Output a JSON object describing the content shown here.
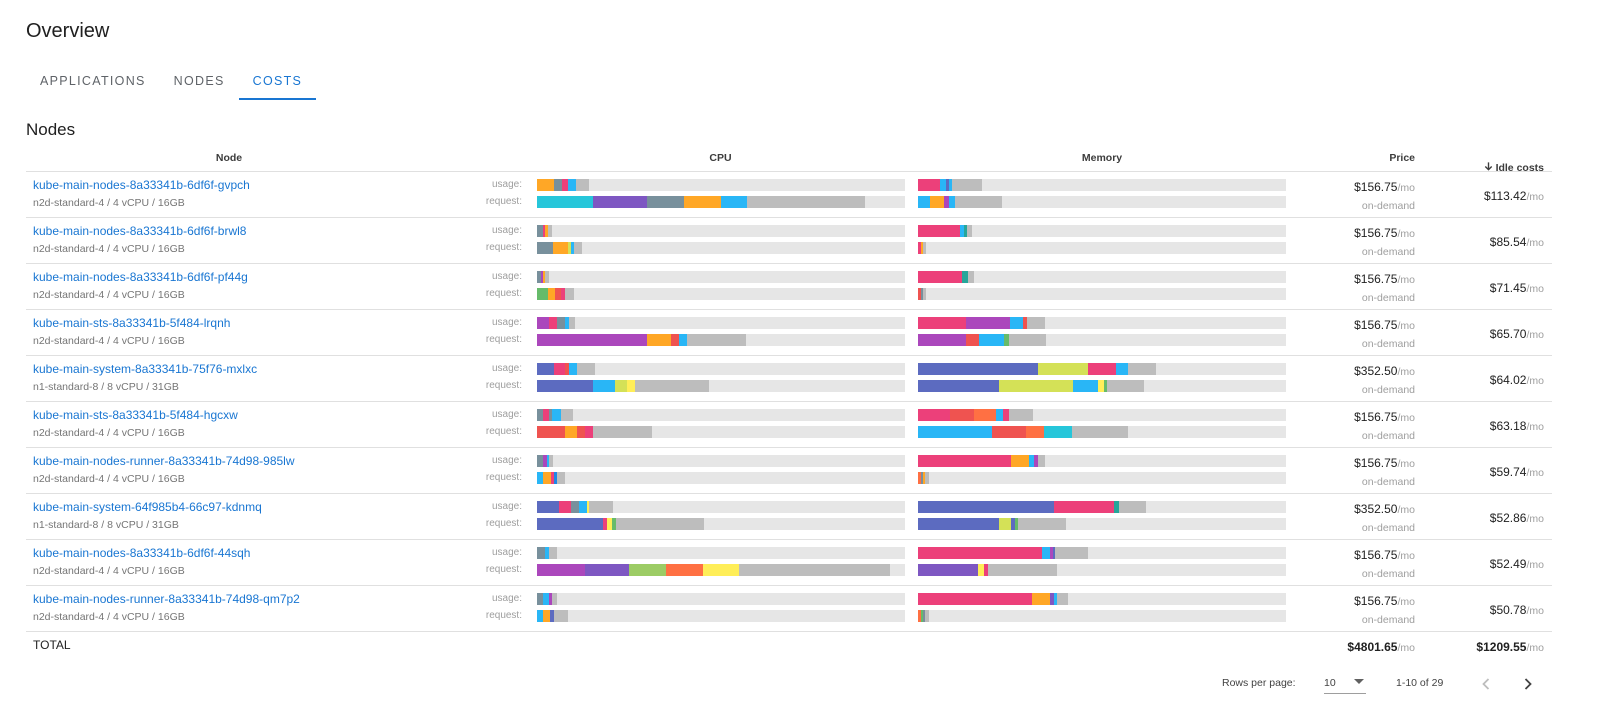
{
  "page": {
    "title": "Overview"
  },
  "tabs": [
    {
      "label": "APPLICATIONS",
      "active": false
    },
    {
      "label": "NODES",
      "active": false
    },
    {
      "label": "COSTS",
      "active": true
    }
  ],
  "section": {
    "title": "Nodes"
  },
  "table": {
    "headers": {
      "node": "Node",
      "cpu": "CPU",
      "memory": "Memory",
      "price": "Price",
      "idle": "Idle costs"
    },
    "sort_icon": "arrow-down-icon",
    "usage_label": "usage:",
    "request_label": "request:",
    "per_month": "/mo",
    "rows": [
      {
        "name": "kube-main-nodes-8a33341b-6df6f-gvpch",
        "spec": "n2d-standard-4 / 4 vCPU / 16GB",
        "price": "$156.75",
        "pricing": "on-demand",
        "idle": "$113.42",
        "cpu_usage": [
          [
            "#ffa726",
            0.046
          ],
          [
            "#78909c",
            0.022
          ],
          [
            "#ec407a",
            0.015
          ],
          [
            "#29b6f6",
            0.022
          ],
          [
            "#bdbdbd",
            0.035
          ]
        ],
        "cpu_request": [
          [
            "#26c6da",
            0.152
          ],
          [
            "#7e57c2",
            0.147
          ],
          [
            "#78909c",
            0.1
          ],
          [
            "#ffa726",
            0.1
          ],
          [
            "#29b6f6",
            0.073
          ],
          [
            "#bdbdbd",
            0.32
          ]
        ],
        "mem_usage": [
          [
            "#ec407a",
            0.06
          ],
          [
            "#29b6f6",
            0.015
          ],
          [
            "#5c6bc0",
            0.008
          ],
          [
            "#29b6f6",
            0.01
          ],
          [
            "#bdbdbd",
            0.08
          ]
        ],
        "mem_request": [
          [
            "#29b6f6",
            0.033
          ],
          [
            "#ffa726",
            0.038
          ],
          [
            "#ab47bc",
            0.014
          ],
          [
            "#29b6f6",
            0.016
          ],
          [
            "#bdbdbd",
            0.127
          ]
        ]
      },
      {
        "name": "kube-main-nodes-8a33341b-6df6f-brwl8",
        "spec": "n2d-standard-4 / 4 vCPU / 16GB",
        "price": "$156.75",
        "pricing": "on-demand",
        "idle": "$85.54",
        "cpu_usage": [
          [
            "#78909c",
            0.016
          ],
          [
            "#ec407a",
            0.007
          ],
          [
            "#ffa726",
            0.006
          ],
          [
            "#bdbdbd",
            0.013
          ]
        ],
        "cpu_request": [
          [
            "#78909c",
            0.043
          ],
          [
            "#ffa726",
            0.04
          ],
          [
            "#d4e157",
            0.01
          ],
          [
            "#29b6f6",
            0.008
          ],
          [
            "#bdbdbd",
            0.02
          ]
        ],
        "mem_usage": [
          [
            "#ec407a",
            0.114
          ],
          [
            "#29b6f6",
            0.011
          ],
          [
            "#26a69a",
            0.007
          ],
          [
            "#bdbdbd",
            0.015
          ]
        ],
        "mem_request": [
          [
            "#ec407a",
            0.008
          ],
          [
            "#ffa726",
            0.005
          ],
          [
            "#bdbdbd",
            0.01
          ]
        ]
      },
      {
        "name": "kube-main-nodes-8a33341b-6df6f-pf44g",
        "spec": "n2d-standard-4 / 4 vCPU / 16GB",
        "price": "$156.75",
        "pricing": "on-demand",
        "idle": "$71.45",
        "cpu_usage": [
          [
            "#78909c",
            0.01
          ],
          [
            "#ab47bc",
            0.006
          ],
          [
            "#ffa726",
            0.006
          ],
          [
            "#bdbdbd",
            0.01
          ]
        ],
        "cpu_request": [
          [
            "#66bb6a",
            0.03
          ],
          [
            "#ffa726",
            0.02
          ],
          [
            "#ef5350",
            0.015
          ],
          [
            "#ec407a",
            0.01
          ],
          [
            "#bdbdbd",
            0.025
          ]
        ],
        "mem_usage": [
          [
            "#ec407a",
            0.12
          ],
          [
            "#26a69a",
            0.015
          ],
          [
            "#bdbdbd",
            0.018
          ]
        ],
        "mem_request": [
          [
            "#ef5350",
            0.008
          ],
          [
            "#78909c",
            0.005
          ],
          [
            "#bdbdbd",
            0.01
          ]
        ]
      },
      {
        "name": "kube-main-sts-8a33341b-5f484-lrqnh",
        "spec": "n2d-standard-4 / 4 vCPU / 16GB",
        "price": "$156.75",
        "pricing": "on-demand",
        "idle": "$65.70",
        "cpu_usage": [
          [
            "#ab47bc",
            0.033
          ],
          [
            "#ec407a",
            0.022
          ],
          [
            "#78909c",
            0.022
          ],
          [
            "#29b6f6",
            0.01
          ],
          [
            "#bdbdbd",
            0.015
          ]
        ],
        "cpu_request": [
          [
            "#ab47bc",
            0.3
          ],
          [
            "#ffa726",
            0.065
          ],
          [
            "#ef5350",
            0.022
          ],
          [
            "#29b6f6",
            0.022
          ],
          [
            "#bdbdbd",
            0.16
          ]
        ],
        "mem_usage": [
          [
            "#ec407a",
            0.13
          ],
          [
            "#ab47bc",
            0.12
          ],
          [
            "#29b6f6",
            0.035
          ],
          [
            "#ef5350",
            0.01
          ],
          [
            "#bdbdbd",
            0.05
          ]
        ],
        "mem_request": [
          [
            "#ab47bc",
            0.13
          ],
          [
            "#ef5350",
            0.035
          ],
          [
            "#29b6f6",
            0.07
          ],
          [
            "#66bb6a",
            0.012
          ],
          [
            "#bdbdbd",
            0.1
          ]
        ]
      },
      {
        "name": "kube-main-system-8a33341b-75f76-mxlxc",
        "spec": "n1-standard-8 / 8 vCPU / 31GB",
        "price": "$352.50",
        "pricing": "on-demand",
        "idle": "$64.02",
        "cpu_usage": [
          [
            "#5c6bc0",
            0.046
          ],
          [
            "#ec407a",
            0.03
          ],
          [
            "#ef5350",
            0.01
          ],
          [
            "#29b6f6",
            0.022
          ],
          [
            "#bdbdbd",
            0.05
          ]
        ],
        "cpu_request": [
          [
            "#5c6bc0",
            0.152
          ],
          [
            "#29b6f6",
            0.06
          ],
          [
            "#d4e157",
            0.033
          ],
          [
            "#ffee58",
            0.022
          ],
          [
            "#bdbdbd",
            0.2
          ]
        ],
        "mem_usage": [
          [
            "#5c6bc0",
            0.326
          ],
          [
            "#d4e157",
            0.136
          ],
          [
            "#ec407a",
            0.076
          ],
          [
            "#29b6f6",
            0.033
          ],
          [
            "#bdbdbd",
            0.076
          ]
        ],
        "mem_request": [
          [
            "#5c6bc0",
            0.22
          ],
          [
            "#d4e157",
            0.2
          ],
          [
            "#29b6f6",
            0.07
          ],
          [
            "#ffee58",
            0.015
          ],
          [
            "#66bb6a",
            0.008
          ],
          [
            "#bdbdbd",
            0.1
          ]
        ]
      },
      {
        "name": "kube-main-sts-8a33341b-5f484-hgcxw",
        "spec": "n2d-standard-4 / 4 vCPU / 16GB",
        "price": "$156.75",
        "pricing": "on-demand",
        "idle": "$63.18",
        "cpu_usage": [
          [
            "#78909c",
            0.016
          ],
          [
            "#ec407a",
            0.016
          ],
          [
            "#78909c",
            0.01
          ],
          [
            "#29b6f6",
            0.022
          ],
          [
            "#bdbdbd",
            0.033
          ]
        ],
        "cpu_request": [
          [
            "#ef5350",
            0.076
          ],
          [
            "#ffa726",
            0.033
          ],
          [
            "#ef5350",
            0.022
          ],
          [
            "#ec407a",
            0.022
          ],
          [
            "#bdbdbd",
            0.16
          ]
        ],
        "mem_usage": [
          [
            "#ec407a",
            0.087
          ],
          [
            "#ef5350",
            0.065
          ],
          [
            "#ff7043",
            0.06
          ],
          [
            "#29b6f6",
            0.02
          ],
          [
            "#ec407a",
            0.015
          ],
          [
            "#bdbdbd",
            0.065
          ]
        ],
        "mem_request": [
          [
            "#29b6f6",
            0.2
          ],
          [
            "#ef5350",
            0.093
          ],
          [
            "#ff7043",
            0.05
          ],
          [
            "#26c6da",
            0.076
          ],
          [
            "#bdbdbd",
            0.152
          ]
        ]
      },
      {
        "name": "kube-main-nodes-runner-8a33341b-74d98-985lw",
        "spec": "n2d-standard-4 / 4 vCPU / 16GB",
        "price": "$156.75",
        "pricing": "on-demand",
        "idle": "$59.74",
        "cpu_usage": [
          [
            "#78909c",
            0.016
          ],
          [
            "#ab47bc",
            0.01
          ],
          [
            "#29b6f6",
            0.008
          ],
          [
            "#bdbdbd",
            0.01
          ]
        ],
        "cpu_request": [
          [
            "#29b6f6",
            0.016
          ],
          [
            "#ffa726",
            0.022
          ],
          [
            "#ec407a",
            0.008
          ],
          [
            "#1e88e5",
            0.008
          ],
          [
            "#bdbdbd",
            0.022
          ]
        ],
        "mem_usage": [
          [
            "#ec407a",
            0.253
          ],
          [
            "#ffa726",
            0.05
          ],
          [
            "#29b6f6",
            0.012
          ],
          [
            "#ab47bc",
            0.01
          ],
          [
            "#bdbdbd",
            0.02
          ]
        ],
        "mem_request": [
          [
            "#ff7043",
            0.008
          ],
          [
            "#78909c",
            0.006
          ],
          [
            "#ffa726",
            0.006
          ],
          [
            "#bdbdbd",
            0.01
          ]
        ]
      },
      {
        "name": "kube-main-system-64f985b4-66c97-kdnmq",
        "spec": "n1-standard-8 / 8 vCPU / 31GB",
        "price": "$352.50",
        "pricing": "on-demand",
        "idle": "$52.86",
        "cpu_usage": [
          [
            "#5c6bc0",
            0.06
          ],
          [
            "#ec407a",
            0.033
          ],
          [
            "#78909c",
            0.022
          ],
          [
            "#29b6f6",
            0.022
          ],
          [
            "#ffee58",
            0.005
          ],
          [
            "#bdbdbd",
            0.065
          ]
        ],
        "cpu_request": [
          [
            "#5c6bc0",
            0.179
          ],
          [
            "#ec407a",
            0.01
          ],
          [
            "#ffee58",
            0.016
          ],
          [
            "#66bb6a",
            0.01
          ],
          [
            "#bdbdbd",
            0.24
          ]
        ],
        "mem_usage": [
          [
            "#5c6bc0",
            0.37
          ],
          [
            "#ec407a",
            0.163
          ],
          [
            "#26a69a",
            0.012
          ],
          [
            "#bdbdbd",
            0.076
          ]
        ],
        "mem_request": [
          [
            "#5c6bc0",
            0.22
          ],
          [
            "#d4e157",
            0.033
          ],
          [
            "#5c6bc0",
            0.01
          ],
          [
            "#66bb6a",
            0.008
          ],
          [
            "#bdbdbd",
            0.13
          ]
        ]
      },
      {
        "name": "kube-main-nodes-8a33341b-6df6f-44sqh",
        "spec": "n2d-standard-4 / 4 vCPU / 16GB",
        "price": "$156.75",
        "pricing": "on-demand",
        "idle": "$52.49",
        "cpu_usage": [
          [
            "#78909c",
            0.022
          ],
          [
            "#29b6f6",
            0.01
          ],
          [
            "#bdbdbd",
            0.022
          ]
        ],
        "cpu_request": [
          [
            "#ab47bc",
            0.13
          ],
          [
            "#7e57c2",
            0.12
          ],
          [
            "#9ccc65",
            0.1
          ],
          [
            "#ff7043",
            0.1
          ],
          [
            "#ffee58",
            0.1
          ],
          [
            "#bdbdbd",
            0.41
          ]
        ],
        "mem_usage": [
          [
            "#ec407a",
            0.337
          ],
          [
            "#29b6f6",
            0.022
          ],
          [
            "#ab47bc",
            0.008
          ],
          [
            "#5c6bc0",
            0.006
          ],
          [
            "#bdbdbd",
            0.09
          ]
        ],
        "mem_request": [
          [
            "#7e57c2",
            0.163
          ],
          [
            "#ffee58",
            0.016
          ],
          [
            "#ec407a",
            0.01
          ],
          [
            "#bdbdbd",
            0.19
          ]
        ]
      },
      {
        "name": "kube-main-nodes-runner-8a33341b-74d98-qm7p2",
        "spec": "n2d-standard-4 / 4 vCPU / 16GB",
        "price": "$156.75",
        "pricing": "on-demand",
        "idle": "$50.78",
        "cpu_usage": [
          [
            "#78909c",
            0.016
          ],
          [
            "#29b6f6",
            0.016
          ],
          [
            "#ab47bc",
            0.01
          ],
          [
            "#bdbdbd",
            0.012
          ]
        ],
        "cpu_request": [
          [
            "#29b6f6",
            0.016
          ],
          [
            "#ffa726",
            0.02
          ],
          [
            "#5c6bc0",
            0.01
          ],
          [
            "#bdbdbd",
            0.038
          ]
        ],
        "mem_usage": [
          [
            "#ec407a",
            0.31
          ],
          [
            "#ffa726",
            0.05
          ],
          [
            "#7e57c2",
            0.01
          ],
          [
            "#29b6f6",
            0.008
          ],
          [
            "#bdbdbd",
            0.03
          ]
        ],
        "mem_request": [
          [
            "#ff7043",
            0.008
          ],
          [
            "#66bb6a",
            0.006
          ],
          [
            "#78909c",
            0.006
          ],
          [
            "#bdbdbd",
            0.01
          ]
        ]
      }
    ],
    "total": {
      "label": "TOTAL",
      "price": "$4801.65",
      "idle": "$1209.55"
    }
  },
  "pagination": {
    "rows_per_page_label": "Rows per page:",
    "rows_per_page": "10",
    "range": "1-10 of 29",
    "prev_icon": "chevron-left-icon",
    "next_icon": "chevron-right-icon"
  }
}
